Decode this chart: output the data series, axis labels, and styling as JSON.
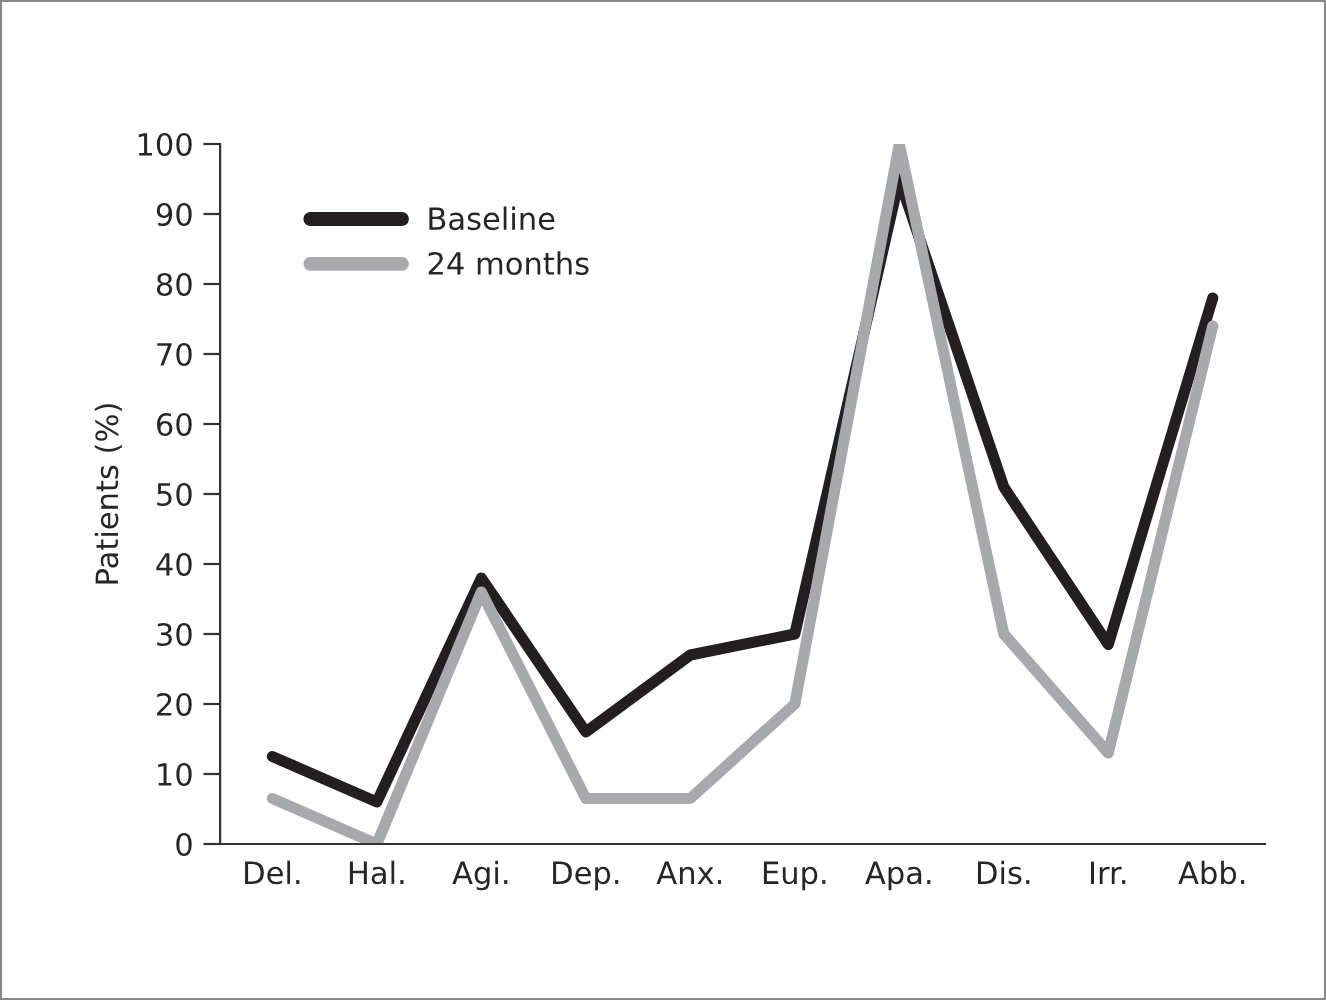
{
  "chart_data": {
    "type": "line",
    "ylabel": "Patients (%)",
    "categories": [
      "Del.",
      "Hal.",
      "Agi.",
      "Dep.",
      "Anx.",
      "Eup.",
      "Apa.",
      "Dis.",
      "Irr.",
      "Abb."
    ],
    "series": [
      {
        "name": "Baseline",
        "color": "#231f20",
        "values": [
          12.5,
          6,
          38,
          16,
          27,
          30,
          95,
          51,
          28.5,
          78
        ]
      },
      {
        "name": "24 months",
        "color": "#a7a9ac",
        "values": [
          6.5,
          0,
          36,
          6.5,
          6.5,
          20,
          100,
          30,
          13,
          74
        ]
      }
    ],
    "ylim": [
      0,
      100
    ],
    "yticks": [
      0,
      10,
      20,
      30,
      40,
      50,
      60,
      70,
      80,
      90,
      100
    ],
    "grid": false,
    "legend": "top left",
    "marker": "none",
    "line_style": "solid"
  }
}
